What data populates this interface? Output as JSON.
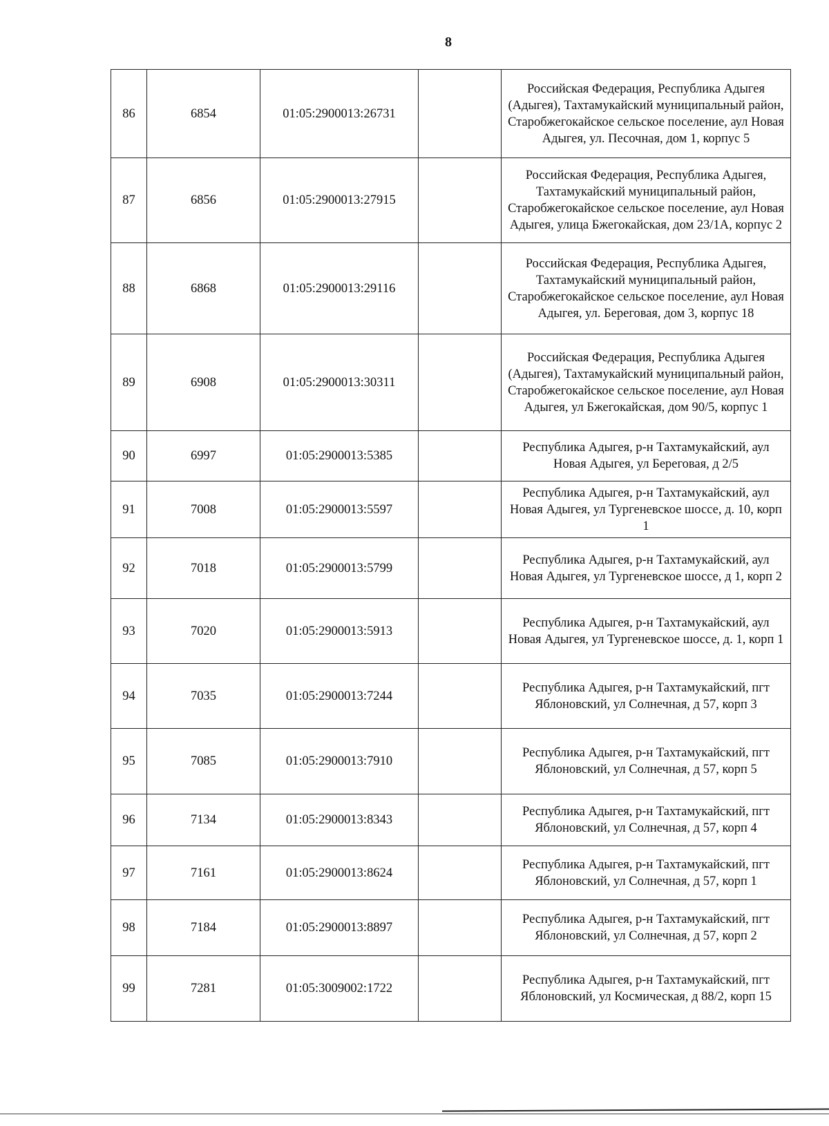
{
  "page_number": "8",
  "rows": [
    {
      "n": "86",
      "id": "6854",
      "cad": "01:05:2900013:26731",
      "empty": "",
      "addr": "Российская Федерация, Республика Адыгея (Адыгея), Тахтамукайский муниципальный район, Старобжегокайское сельское поселение, аул Новая Адыгея, ул. Песочная, дом 1, корпус 5"
    },
    {
      "n": "87",
      "id": "6856",
      "cad": "01:05:2900013:27915",
      "empty": "",
      "addr": "Российская Федерация, Республика Адыгея, Тахтамукайский муниципальный район, Старобжегокайское сельское поселение, аул Новая Адыгея, улица Бжегокайская, дом 23/1А, корпус 2"
    },
    {
      "n": "88",
      "id": "6868",
      "cad": "01:05:2900013:29116",
      "empty": "",
      "addr": "Российская Федерация, Республика Адыгея, Тахтамукайский муниципальный район, Старобжегокайское сельское поселение, аул Новая Адыгея, ул. Береговая, дом 3, корпус 18"
    },
    {
      "n": "89",
      "id": "6908",
      "cad": "01:05:2900013:30311",
      "empty": "",
      "addr": "Российская Федерация, Республика Адыгея (Адыгея), Тахтамукайский муниципальный район, Старобжегокайское сельское поселение, аул Новая Адыгея, ул Бжегокайская, дом 90/5, корпус 1"
    },
    {
      "n": "90",
      "id": "6997",
      "cad": "01:05:2900013:5385",
      "empty": "",
      "addr": "Республика Адыгея, р-н Тахтамукайский, аул Новая Адыгея, ул Береговая, д 2/5"
    },
    {
      "n": "91",
      "id": "7008",
      "cad": "01:05:2900013:5597",
      "empty": "",
      "addr": "Республика Адыгея, р-н Тахтамукайский, аул Новая Адыгея, ул Тургеневское шоссе, д. 10, корп 1"
    },
    {
      "n": "92",
      "id": "7018",
      "cad": "01:05:2900013:5799",
      "empty": "",
      "addr": "Республика Адыгея, р-н Тахтамукайский, аул Новая Адыгея, ул Тургеневское шоссе, д 1, корп 2"
    },
    {
      "n": "93",
      "id": "7020",
      "cad": "01:05:2900013:5913",
      "empty": "",
      "addr": "Республика Адыгея, р-н Тахтамукайский, аул Новая Адыгея, ул Тургеневское шоссе, д. 1, корп 1"
    },
    {
      "n": "94",
      "id": "7035",
      "cad": "01:05:2900013:7244",
      "empty": "",
      "addr": "Республика Адыгея, р-н Тахтамукайский, пгт Яблоновский, ул Солнечная, д 57, корп 3"
    },
    {
      "n": "95",
      "id": "7085",
      "cad": "01:05:2900013:7910",
      "empty": "",
      "addr": "Республика Адыгея, р-н Тахтамукайский, пгт Яблоновский, ул Солнечная, д 57, корп 5"
    },
    {
      "n": "96",
      "id": "7134",
      "cad": "01:05:2900013:8343",
      "empty": "",
      "addr": "Республика Адыгея, р-н Тахтамукайский, пгт Яблоновский, ул Солнечная, д 57, корп 4"
    },
    {
      "n": "97",
      "id": "7161",
      "cad": "01:05:2900013:8624",
      "empty": "",
      "addr": "Республика Адыгея, р-н Тахтамукайский, пгт Яблоновский, ул Солнечная, д 57, корп 1"
    },
    {
      "n": "98",
      "id": "7184",
      "cad": "01:05:2900013:8897",
      "empty": "",
      "addr": "Республика Адыгея, р-н Тахтамукайский, пгт Яблоновский, ул Солнечная, д 57, корп 2"
    },
    {
      "n": "99",
      "id": "7281",
      "cad": "01:05:3009002:1722",
      "empty": "",
      "addr": "Республика Адыгея, р-н Тахтамукайский, пгт Яблоновский, ул Космическая, д 88/2, корп 15"
    }
  ]
}
